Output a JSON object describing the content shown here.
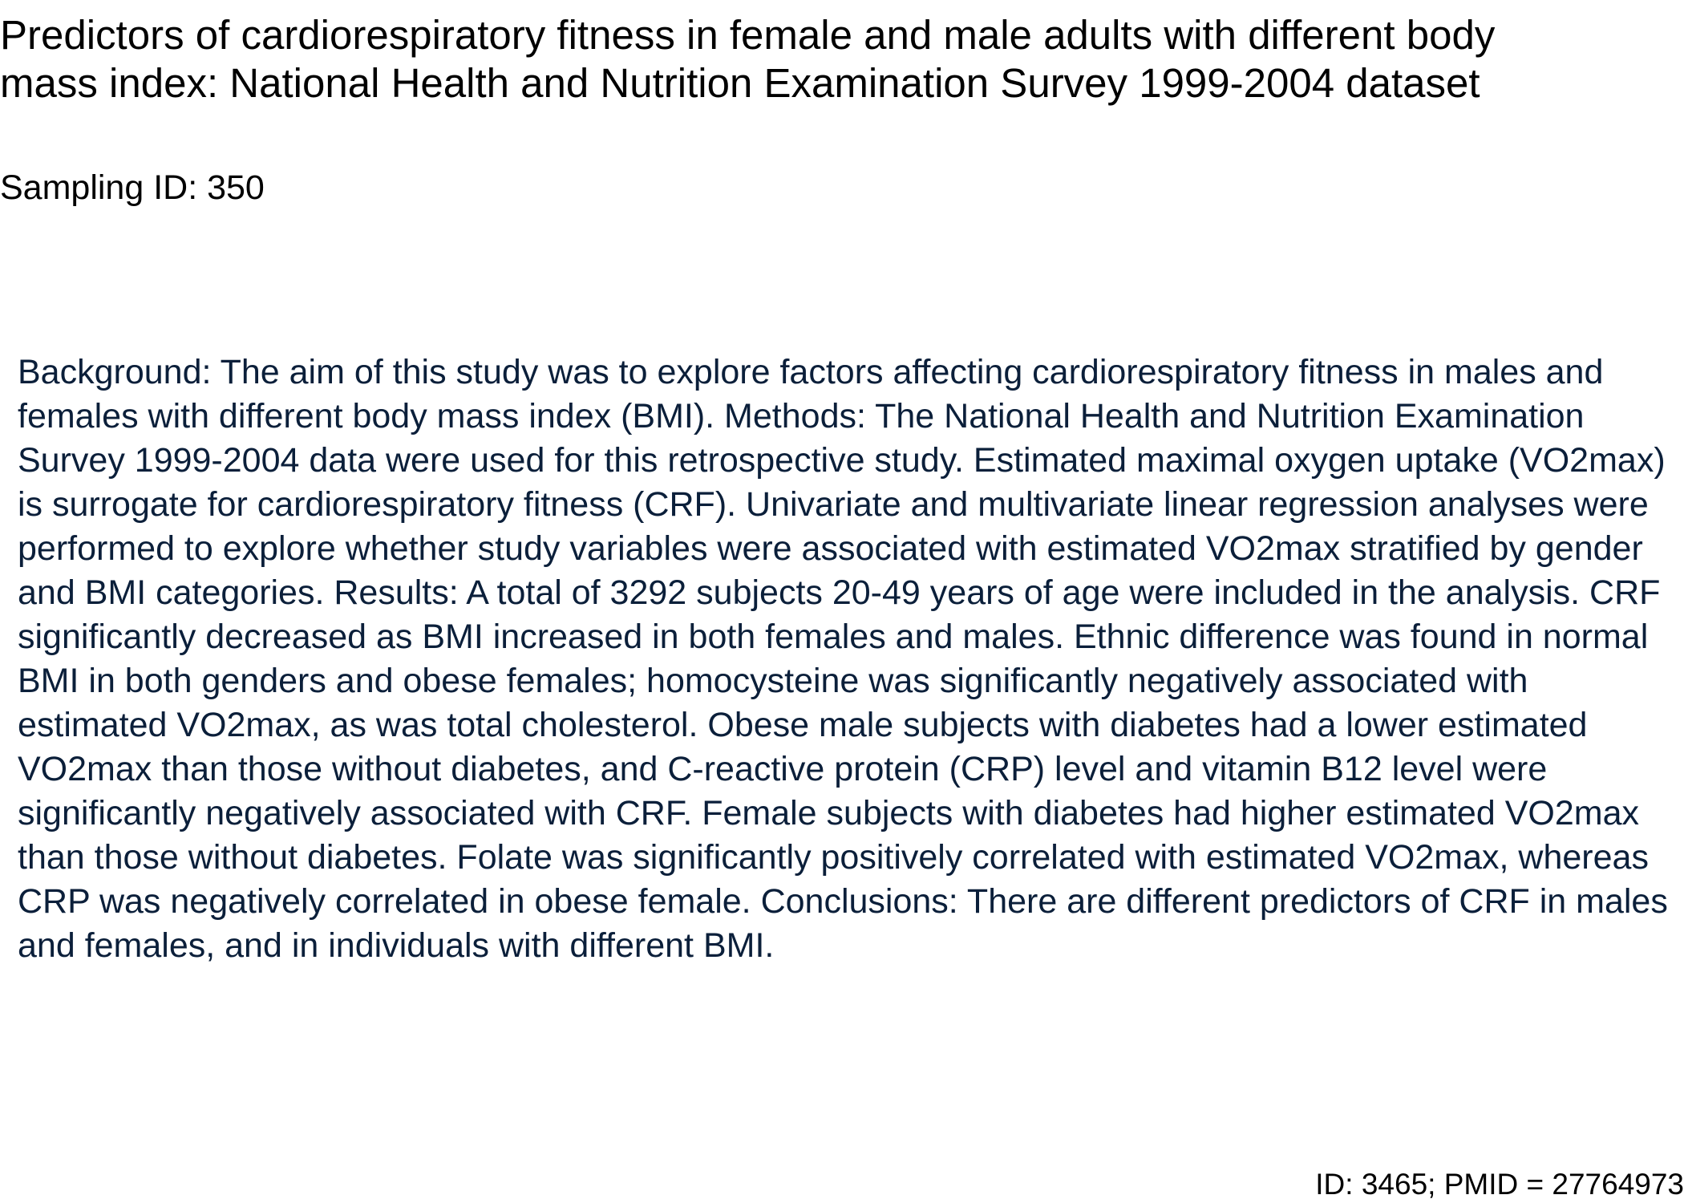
{
  "paper": {
    "title": "Predictors of cardiorespiratory fitness in female and male adults with different body mass index: National Health and Nutrition Examination Survey 1999-2004 dataset",
    "sampling_id": "Sampling ID: 350",
    "abstract": "Background: The aim of this study was to explore factors affecting cardiorespiratory fitness in males and females with different body mass index (BMI). Methods: The National Health and Nutrition Examination Survey 1999-2004 data were used for this retrospective study. Estimated maximal oxygen uptake (VO2max) is surrogate for cardiorespiratory fitness (CRF). Univariate and multivariate linear regression analyses were performed to explore whether study variables were associated with estimated VO2max stratified by gender and BMI categories. Results: A total of 3292 subjects 20-49 years of age were included in the analysis. CRF significantly decreased as BMI increased in both females and males. Ethnic difference was found in normal BMI in both genders and obese females; homocysteine was significantly negatively associated with estimated VO2max, as was total cholesterol. Obese male subjects with diabetes had a lower estimated VO2max than those without diabetes, and C-reactive protein (CRP) level and vitamin B12 level were significantly negatively associated with CRF. Female subjects with diabetes had higher estimated VO2max than those without diabetes. Folate was significantly positively correlated with estimated VO2max, whereas CRP was negatively correlated in obese female. Conclusions: There are different predictors of CRF in males and females, and in individuals with different BMI.",
    "footer_id": "ID: 3465; PMID = 27764973"
  },
  "colors": {
    "title_text": "#000000",
    "abstract_text": "#0b1f3a",
    "background": "#ffffff"
  }
}
